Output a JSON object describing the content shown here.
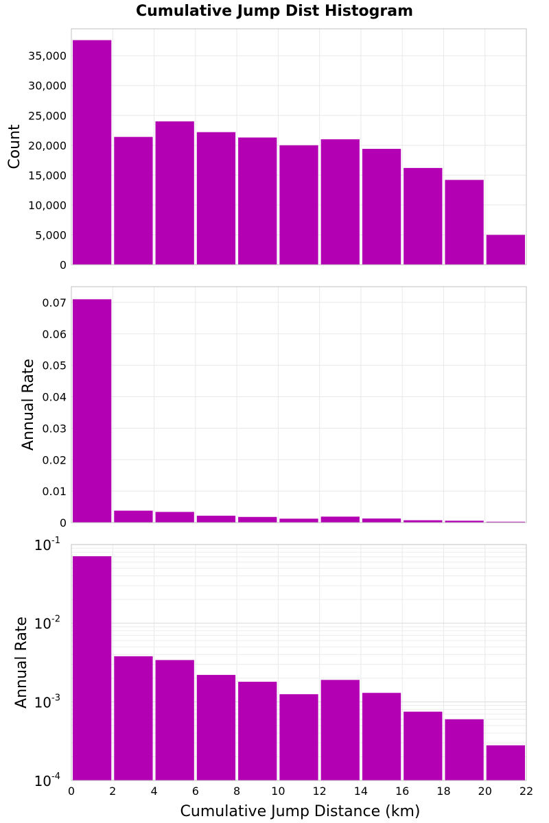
{
  "title": "Cumulative Jump Dist Histogram",
  "colors": {
    "bar": "#b300b3",
    "grid": "#e8e8e8",
    "frame": "#c0c0c0"
  },
  "chart_data": [
    {
      "type": "bar",
      "scale": "linear",
      "ylabel": "Count",
      "xlabel": "",
      "x_bins": [
        [
          0,
          2
        ],
        [
          2,
          4
        ],
        [
          4,
          6
        ],
        [
          6,
          8
        ],
        [
          8,
          10
        ],
        [
          10,
          12
        ],
        [
          12,
          14
        ],
        [
          14,
          16
        ],
        [
          16,
          18
        ],
        [
          18,
          20
        ],
        [
          20,
          22
        ]
      ],
      "values": [
        37600,
        21400,
        24000,
        22200,
        21300,
        20000,
        21000,
        19400,
        16200,
        14200,
        5000
      ],
      "xlim": [
        0,
        22
      ],
      "ylim": [
        0,
        39500
      ],
      "yticks": [
        0,
        5000,
        10000,
        15000,
        20000,
        25000,
        30000,
        35000
      ],
      "ytick_labels": [
        "0",
        "5,000",
        "10,000",
        "15,000",
        "20,000",
        "25,000",
        "30,000",
        "35,000"
      ],
      "grid": true
    },
    {
      "type": "bar",
      "scale": "linear",
      "ylabel": "Annual Rate",
      "xlabel": "",
      "x_bins": [
        [
          0,
          2
        ],
        [
          2,
          4
        ],
        [
          4,
          6
        ],
        [
          6,
          8
        ],
        [
          8,
          10
        ],
        [
          10,
          12
        ],
        [
          12,
          14
        ],
        [
          14,
          16
        ],
        [
          16,
          18
        ],
        [
          18,
          20
        ],
        [
          20,
          22
        ]
      ],
      "values": [
        0.071,
        0.0038,
        0.0034,
        0.0022,
        0.0018,
        0.00125,
        0.0019,
        0.0013,
        0.00075,
        0.0006,
        0.00028
      ],
      "xlim": [
        0,
        22
      ],
      "ylim": [
        0,
        0.075
      ],
      "yticks": [
        0,
        0.01,
        0.02,
        0.03,
        0.04,
        0.05,
        0.06,
        0.07
      ],
      "ytick_labels": [
        "0",
        "0.01",
        "0.02",
        "0.03",
        "0.04",
        "0.05",
        "0.06",
        "0.07"
      ],
      "grid": true
    },
    {
      "type": "bar",
      "scale": "log",
      "ylabel": "Annual Rate",
      "xlabel": "Cumulative Jump Distance (km)",
      "x_bins": [
        [
          0,
          2
        ],
        [
          2,
          4
        ],
        [
          4,
          6
        ],
        [
          6,
          8
        ],
        [
          8,
          10
        ],
        [
          10,
          12
        ],
        [
          12,
          14
        ],
        [
          14,
          16
        ],
        [
          16,
          18
        ],
        [
          18,
          20
        ],
        [
          20,
          22
        ]
      ],
      "values": [
        0.071,
        0.0038,
        0.0034,
        0.0022,
        0.0018,
        0.00125,
        0.0019,
        0.0013,
        0.00075,
        0.0006,
        0.00028
      ],
      "xlim": [
        0,
        22
      ],
      "ylim": [
        0.0001,
        0.1
      ],
      "ytick_labels": [
        {
          "value": 0.1,
          "base": "10",
          "exp": "-1"
        },
        {
          "value": 0.01,
          "base": "10",
          "exp": "-2"
        },
        {
          "value": 0.001,
          "base": "10",
          "exp": "-3"
        },
        {
          "value": 0.0001,
          "base": "10",
          "exp": "-4"
        }
      ],
      "xticks": [
        0,
        2,
        4,
        6,
        8,
        10,
        12,
        14,
        16,
        18,
        20,
        22
      ],
      "xtick_labels": [
        "0",
        "2",
        "4",
        "6",
        "8",
        "10",
        "12",
        "14",
        "16",
        "18",
        "20",
        "22"
      ],
      "grid": true
    }
  ]
}
